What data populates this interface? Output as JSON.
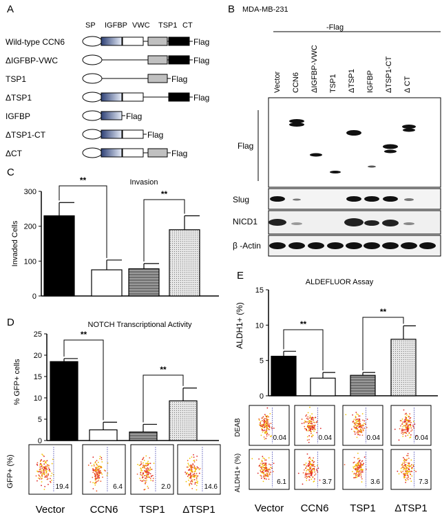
{
  "panel_labels": {
    "a": "A",
    "b": "B",
    "c": "C",
    "d": "D",
    "e": "E"
  },
  "panel_a": {
    "domain_headers": [
      "SP",
      "IGFBP",
      "VWC",
      "TSP1",
      "CT"
    ],
    "constructs": [
      {
        "name": "Wild-type CCN6",
        "domains": [
          "SP",
          "IGFBP",
          "VWC",
          "TSP1",
          "CT"
        ],
        "tag": "Flag"
      },
      {
        "name": "ΔIGFBP-VWC",
        "domains": [
          "SP",
          "gap",
          "gap",
          "TSP1",
          "CT"
        ],
        "tag": "Flag"
      },
      {
        "name": "TSP1",
        "domains": [
          "SP",
          "gap",
          "gap",
          "TSP1"
        ],
        "tag": "Flag"
      },
      {
        "name": "ΔTSP1",
        "domains": [
          "SP",
          "IGFBP",
          "VWC",
          "gap",
          "CT"
        ],
        "tag": "Flag"
      },
      {
        "name": "IGFBP",
        "domains": [
          "SP",
          "IGFBP"
        ],
        "tag": "Flag"
      },
      {
        "name": "ΔTSP1-CT",
        "domains": [
          "SP",
          "IGFBP",
          "VWC"
        ],
        "tag": "Flag"
      },
      {
        "name": "ΔCT",
        "domains": [
          "SP",
          "IGFBP",
          "VWC",
          "TSP1"
        ],
        "tag": "Flag"
      }
    ]
  },
  "panel_b": {
    "cell_line": "MDA-MB-231",
    "header": "-Flag",
    "lanes": [
      "Vector",
      "CCN6",
      "ΔIGFBP-VWC",
      "TSP1",
      "ΔTSP1",
      "IGFBP",
      "ΔTSP1-CT",
      "Δ CT"
    ],
    "blot_labels": [
      "Flag",
      "Slug",
      "NICD1",
      "β -Actin"
    ]
  },
  "chart_data": [
    {
      "panel": "C",
      "type": "bar",
      "title": "Invasion",
      "categories": [
        "Vector",
        "CCN6",
        "TSP1",
        "ΔTSP1"
      ],
      "values": [
        230,
        75,
        78,
        190
      ],
      "errors": [
        38,
        28,
        15,
        40
      ],
      "ylabel": "Invaded  Cells",
      "ylim": [
        0,
        300
      ],
      "yticks": [
        "0",
        "100",
        "200",
        "300"
      ],
      "significance": [
        {
          "between": [
            "Vector",
            "CCN6"
          ],
          "label": "**"
        },
        {
          "between": [
            "TSP1",
            "ΔTSP1"
          ],
          "label": "**"
        }
      ]
    },
    {
      "panel": "D",
      "type": "bar",
      "title": "NOTCH Transcriptional Activity",
      "categories": [
        "Vector",
        "CCN6",
        "TSP1",
        "ΔTSP1"
      ],
      "values": [
        18.5,
        2.5,
        2.0,
        9.3
      ],
      "errors": [
        0.7,
        1.8,
        1.8,
        3.0
      ],
      "ylabel": "% GFP+ cells",
      "ylim": [
        0,
        25
      ],
      "yticks": [
        "0",
        "5",
        "10",
        "15",
        "20",
        "25"
      ],
      "significance": [
        {
          "between": [
            "Vector",
            "CCN6"
          ],
          "label": "**"
        },
        {
          "between": [
            "TSP1",
            "ΔTSP1"
          ],
          "label": "**"
        }
      ],
      "flow_ylabel": "GFP+ (%)",
      "flow_values": [
        "19.4",
        "6.4",
        "2.0",
        "14.6"
      ],
      "xlabels": [
        "Vector",
        "CCN6",
        "TSP1",
        "ΔTSP1"
      ]
    },
    {
      "panel": "E",
      "type": "bar",
      "title": "ALDEFLUOR  Assay",
      "categories": [
        "Vector",
        "CCN6",
        "TSP1",
        "ΔTSP1"
      ],
      "values": [
        5.6,
        2.5,
        2.9,
        8.0
      ],
      "errors": [
        0.7,
        0.8,
        0.4,
        1.9
      ],
      "ylabel": "ALDH1+ (%)",
      "ylim": [
        0,
        15
      ],
      "yticks": [
        "0",
        "5",
        "10",
        "15"
      ],
      "significance": [
        {
          "between": [
            "Vector",
            "CCN6"
          ],
          "label": "**"
        },
        {
          "between": [
            "TSP1",
            "ΔTSP1"
          ],
          "label": "**"
        }
      ],
      "flow_deab_label": "DEAB",
      "flow_deab_values": [
        "0.04",
        "0.04",
        "0.04",
        "0.04"
      ],
      "flow_aldh_label": "ALDH1+ (%)",
      "flow_aldh_values": [
        "6.1",
        "3.7",
        "3.6",
        "7.3"
      ],
      "xlabels": [
        "Vector",
        "CCN6",
        "TSP1",
        "ΔTSP1"
      ]
    }
  ],
  "colors": {
    "black": "#000000",
    "white": "#ffffff",
    "gray": "#8a8a8a",
    "dotted": "#d8d8d8",
    "igfbp": "#3b4f8a",
    "tsp1": "#c0c0c0"
  }
}
